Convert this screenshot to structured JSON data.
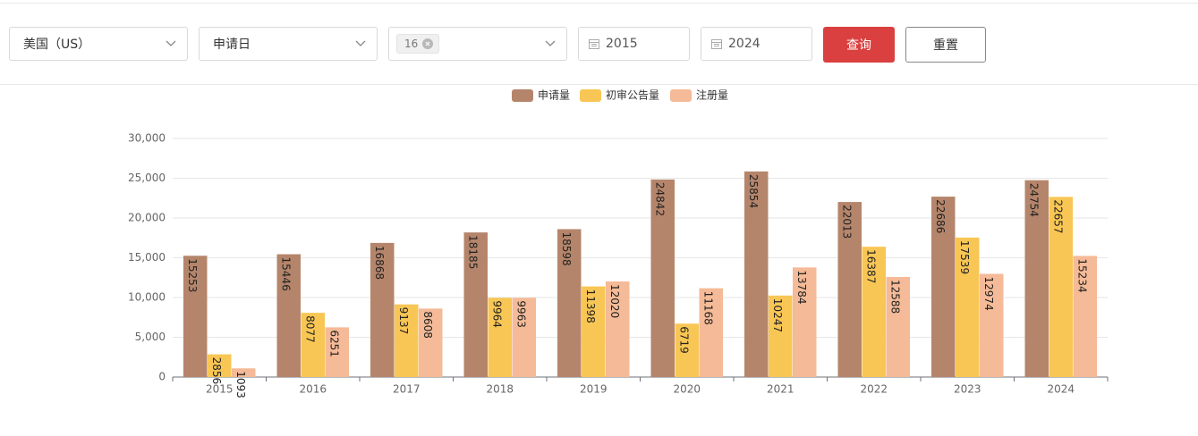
{
  "filters": {
    "country": "美国（US）",
    "date_type": "申请日",
    "tag": "16",
    "start_year": "2015",
    "end_year": "2024",
    "query": "查询",
    "reset": "重置"
  },
  "chart_data": {
    "type": "bar",
    "categories": [
      "2015",
      "2016",
      "2017",
      "2018",
      "2019",
      "2020",
      "2021",
      "2022",
      "2023",
      "2024"
    ],
    "series": [
      {
        "name": "申请量",
        "color": "#b5856b",
        "values": [
          15253,
          15446,
          16868,
          18185,
          18598,
          24842,
          25854,
          22013,
          22686,
          24754
        ]
      },
      {
        "name": "初审公告量",
        "color": "#f8c654",
        "values": [
          2856,
          8077,
          9137,
          9964,
          11398,
          6719,
          10247,
          16387,
          17539,
          22657
        ]
      },
      {
        "name": "注册量",
        "color": "#f5ba97",
        "values": [
          1093,
          6251,
          8608,
          9963,
          12020,
          11168,
          13784,
          12588,
          12974,
          15234
        ]
      }
    ],
    "ylim": [
      0,
      30000
    ],
    "yticks": [
      0,
      {
        "value": 5000,
        "label": "5,000"
      },
      {
        "value": 10000,
        "label": "10,000"
      },
      {
        "value": 15000,
        "label": "15,000"
      },
      {
        "value": 20000,
        "label": "20,000"
      },
      {
        "value": 25000,
        "label": "25,000"
      },
      {
        "value": 30000,
        "label": "30,000"
      }
    ],
    "grid": true,
    "legend": "top"
  }
}
